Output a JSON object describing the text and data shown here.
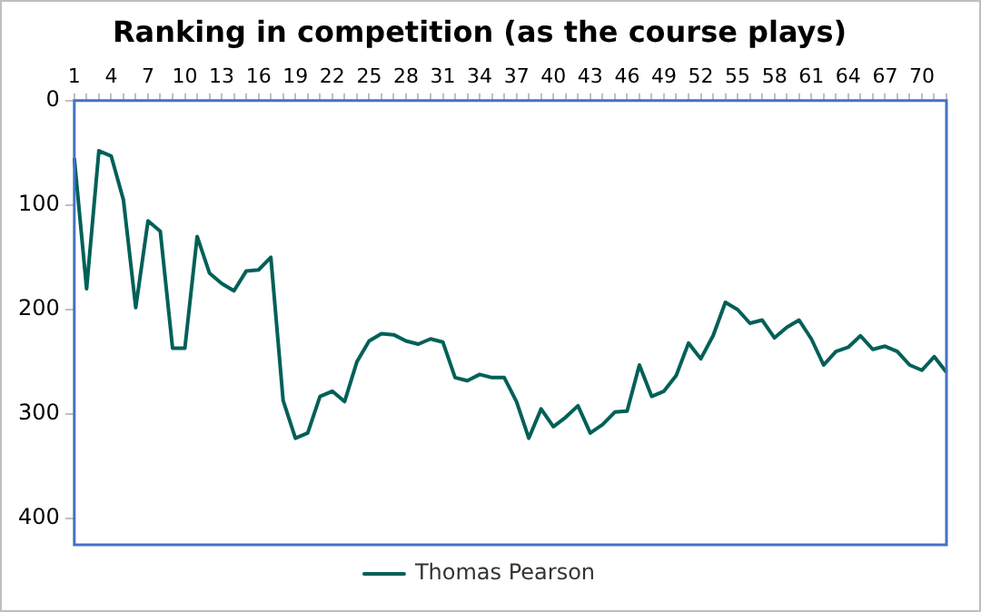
{
  "chart_data": {
    "type": "line",
    "title": "Ranking in competition (as the course plays)",
    "categories": [
      "1",
      null,
      null,
      "4",
      null,
      null,
      "7",
      null,
      null,
      "10",
      null,
      null,
      "13",
      null,
      null,
      "16",
      null,
      null,
      "19",
      null,
      null,
      "22",
      null,
      null,
      "25",
      null,
      null,
      "28",
      null,
      null,
      "31",
      null,
      null,
      "34",
      null,
      null,
      "37",
      null,
      null,
      "40",
      null,
      null,
      "43",
      null,
      null,
      "46",
      null,
      null,
      "49",
      null,
      null,
      "52",
      null,
      null,
      "55",
      null,
      null,
      "58",
      null,
      null,
      "61",
      null,
      null,
      "64",
      null,
      null,
      "67",
      null,
      null,
      "70",
      null,
      null
    ],
    "series": [
      {
        "name": "Thomas Pearson",
        "color": "#006058",
        "values": [
          55,
          180,
          48,
          53,
          95,
          198,
          115,
          125,
          237,
          237,
          130,
          165,
          175,
          182,
          163,
          162,
          150,
          287,
          323,
          318,
          283,
          278,
          288,
          250,
          230,
          223,
          224,
          230,
          233,
          228,
          231,
          265,
          268,
          262,
          265,
          265,
          288,
          323,
          295,
          312,
          303,
          292,
          318,
          310,
          298,
          297,
          253,
          283,
          278,
          263,
          232,
          247,
          225,
          193,
          200,
          213,
          210,
          227,
          217,
          210,
          228,
          253,
          240,
          236,
          225,
          238,
          235,
          240,
          253,
          258,
          245,
          260
        ]
      }
    ],
    "ylim": [
      425,
      0
    ],
    "yticks": [
      0,
      100,
      200,
      300,
      400
    ],
    "grid": false,
    "legend": "bottom",
    "marker": "none",
    "line_style": "solid"
  }
}
